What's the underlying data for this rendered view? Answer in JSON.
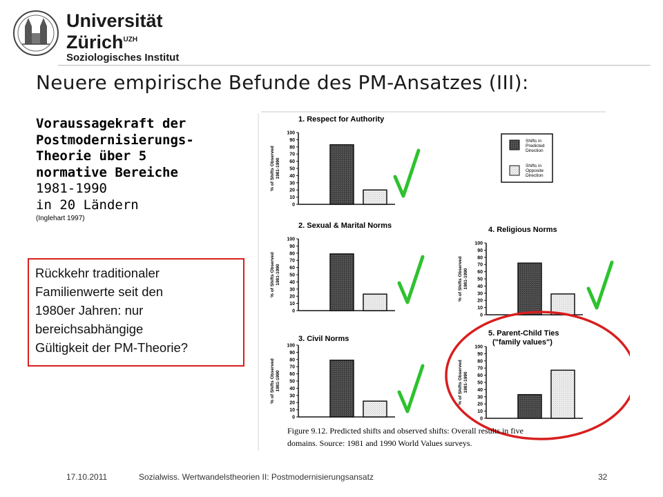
{
  "header": {
    "university_line1": "Universität",
    "university_line2": "Zürich",
    "university_sup": "UZH",
    "institute": "Soziologisches Institut"
  },
  "title": "Neuere empirische Befunde des PM-Ansatzes (III):",
  "left": {
    "bold_lines": [
      "Voraussagekraft der",
      "Postmodernisierungs-",
      "Theorie über 5",
      "normative Bereiche"
    ],
    "plain_lines": [
      "1981-1990",
      "in 20 Ländern"
    ],
    "citation": "(Inglehart  1997)"
  },
  "callout": {
    "lines": [
      "Rückkehr traditionaler",
      "Familienwerte seit den",
      "1980er Jahren: nur",
      "bereichsabhängige",
      "Gültigkeit der PM-Theorie?"
    ]
  },
  "figure": {
    "legend": {
      "predicted": [
        "Shifts in",
        "Predicted",
        "Direction"
      ],
      "opposite": [
        "Shifts in",
        "Opposite",
        "Direction"
      ]
    },
    "y_axis_label": [
      "% of Shifts Observed",
      "1981-1990"
    ],
    "y_ticks": [
      "100",
      "90",
      "80",
      "70",
      "60",
      "50",
      "40",
      "30",
      "20",
      "10",
      "0"
    ],
    "caption_line1": "Figure 9.12. Predicted shifts and observed shifts: Overall results in five",
    "caption_line2": "domains. Source: 1981 and 1990 World Values surveys.",
    "source_word": "Source:",
    "check_color": "#2ec22e",
    "circle_color": "#d81e1e",
    "panels": [
      {
        "title": "1. Respect for Authority",
        "title2": "",
        "predicted": 83,
        "opposite": 20,
        "checked": true,
        "circled": false
      },
      {
        "title": "2. Sexual & Marital Norms",
        "title2": "",
        "predicted": 79,
        "opposite": 23,
        "checked": true,
        "circled": false
      },
      {
        "title": "4. Religious Norms",
        "title2": "",
        "predicted": 72,
        "opposite": 29,
        "checked": true,
        "circled": false
      },
      {
        "title": "3. Civil Norms",
        "title2": "",
        "predicted": 79,
        "opposite": 22,
        "checked": true,
        "circled": false
      },
      {
        "title": "5. Parent-Child Ties",
        "title2": "(\"family values\")",
        "predicted": 33,
        "opposite": 67,
        "checked": false,
        "circled": true
      }
    ]
  },
  "footer": {
    "date": "17.10.2011",
    "course": "Sozialwiss. Wertwandelstheorien II: Postmodernisierungsansatz",
    "page": "32"
  }
}
